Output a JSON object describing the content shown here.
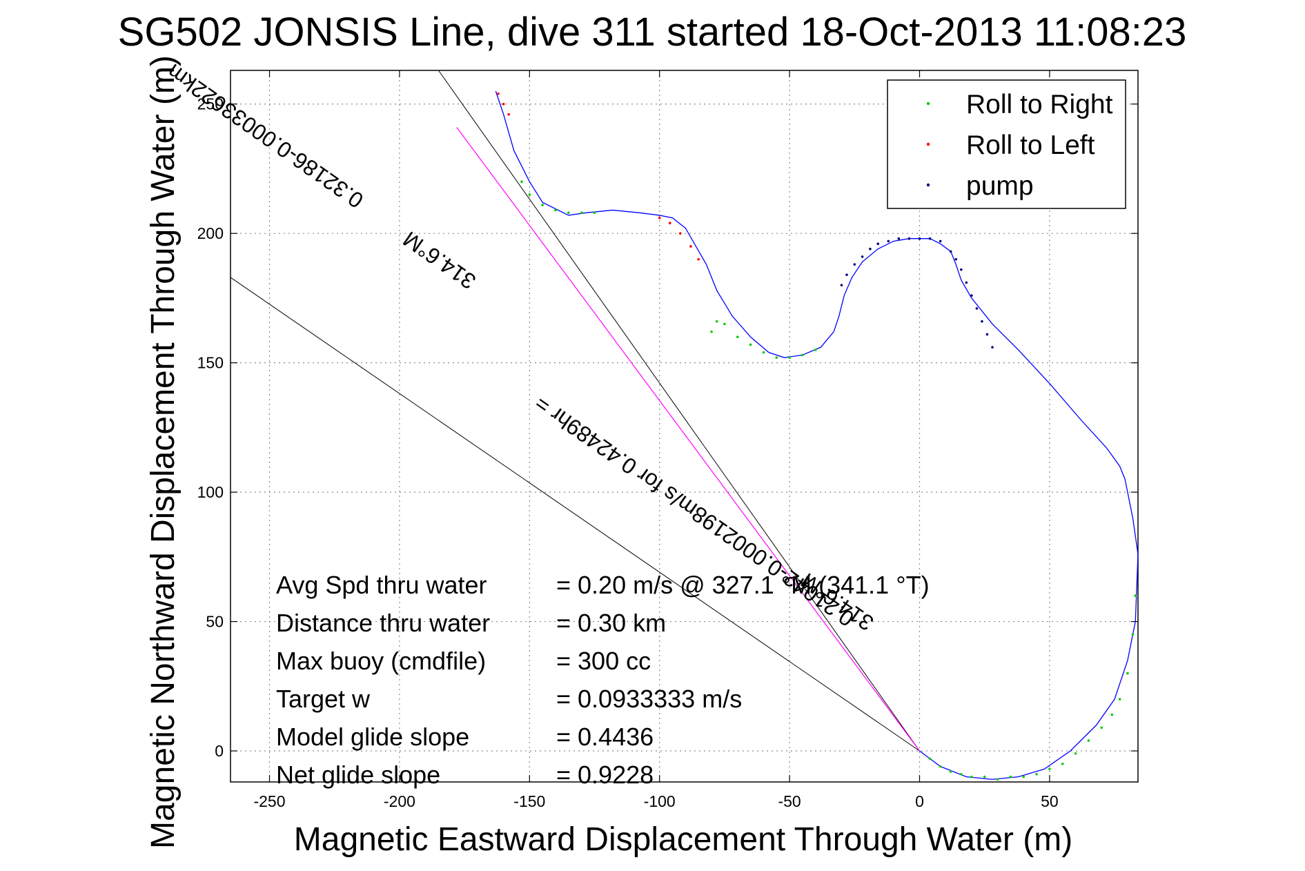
{
  "chart_data": {
    "type": "line",
    "title": "SG502 JONSIS Line, dive 311 started 18-Oct-2013 11:08:23",
    "xlabel": "Magnetic Eastward Displacement Through Water (m)",
    "ylabel": "Magnetic Northward Displacement Through Water (m)",
    "xlim": [
      -265,
      84
    ],
    "ylim": [
      -12,
      263
    ],
    "xticks": [
      -250,
      -200,
      -150,
      -100,
      -50,
      0,
      50
    ],
    "yticks": [
      0,
      50,
      100,
      150,
      200,
      250
    ],
    "grid": true,
    "legend_placement": "top-right",
    "legend": [
      {
        "label": "Roll to Right",
        "color": "#00cc00"
      },
      {
        "label": "Roll to Left",
        "color": "#ff0000"
      },
      {
        "label": "pump",
        "color": "#000080"
      }
    ],
    "track": {
      "name": "track",
      "color": "#0000ff",
      "x": [
        0,
        8,
        18,
        28,
        38,
        48,
        58,
        68,
        75,
        80,
        83,
        84,
        82,
        80,
        79,
        77,
        72,
        62,
        50,
        38,
        28,
        20,
        16,
        14,
        12,
        8,
        4,
        0,
        -4,
        -10,
        -16,
        -22,
        -26,
        -29,
        -31,
        -33,
        -38,
        -45,
        -52,
        -58,
        -65,
        -72,
        -78,
        -82,
        -86,
        -90,
        -95,
        -100,
        -108,
        -118,
        -128,
        -135,
        -145,
        -150,
        -156,
        -160,
        -163
      ],
      "y": [
        0,
        -6,
        -10,
        -11,
        -10,
        -7,
        0,
        10,
        20,
        35,
        50,
        76,
        90,
        100,
        105,
        110,
        117,
        128,
        142,
        155,
        165,
        175,
        182,
        188,
        193,
        196,
        198,
        198,
        198,
        197,
        194,
        189,
        183,
        176,
        168,
        162,
        156,
        153,
        152,
        154,
        160,
        168,
        178,
        188,
        195,
        202,
        206,
        207,
        208,
        209,
        208,
        207,
        212,
        220,
        232,
        246,
        255
      ]
    },
    "roll_right": {
      "x": [
        4,
        8,
        12,
        16,
        20,
        25,
        30,
        35,
        40,
        45,
        50,
        55,
        60,
        65,
        70,
        74,
        77,
        80,
        82,
        83,
        -40,
        -45,
        -50,
        -55,
        -60,
        -65,
        -70,
        -75,
        -78,
        -80,
        -125,
        -130,
        -135,
        -140,
        -145,
        -150,
        -153
      ],
      "y": [
        -3,
        -6,
        -8,
        -9,
        -10,
        -10,
        -11,
        -10,
        -10,
        -9,
        -7,
        -5,
        -1,
        4,
        9,
        14,
        20,
        30,
        45,
        60,
        155,
        153,
        152,
        152,
        154,
        157,
        160,
        165,
        166,
        162,
        208,
        208,
        208,
        209,
        211,
        215,
        220
      ]
    },
    "roll_left": {
      "x": [
        -162,
        -160,
        -158,
        -100,
        -96,
        -92,
        -88,
        -85
      ],
      "y": [
        254,
        250,
        246,
        206,
        204,
        200,
        195,
        190
      ]
    },
    "pump": {
      "x": [
        -30,
        -28,
        -25,
        -22,
        -19,
        -16,
        -12,
        -8,
        -4,
        0,
        4,
        8,
        12,
        14,
        16,
        18,
        20,
        22,
        24,
        26,
        28
      ],
      "y": [
        180,
        184,
        188,
        191,
        194,
        196,
        197,
        198,
        198,
        198,
        198,
        197,
        193,
        190,
        186,
        181,
        176,
        171,
        166,
        161,
        156
      ]
    },
    "heading_lines": [
      {
        "name": "left bound",
        "from": [
          0,
          0
        ],
        "to": [
          -265,
          183
        ]
      },
      {
        "name": "right bound",
        "from": [
          0,
          0
        ],
        "to": [
          -185,
          263
        ]
      },
      {
        "name": "course",
        "from": [
          0,
          0
        ],
        "to": [
          -178,
          241
        ]
      }
    ],
    "annotations": [
      {
        "text": "314.6°M",
        "anchor": [
          -183,
          192
        ],
        "angle": -35
      },
      {
        "text": "0.32186-0.00033622km",
        "anchor": [
          -250,
          240
        ],
        "angle": -35
      },
      {
        "text": "0.21042-0.0002198m/s for 0.42489hr =",
        "anchor": [
          -85,
          95
        ],
        "angle": -35
      },
      {
        "text": "314.6°M",
        "anchor": [
          -30,
          60
        ],
        "angle": -35
      }
    ],
    "stats": [
      {
        "label": "Avg Spd thru water",
        "value": "=  0.20 m/s @ 327.1 °M (341.1 °T)"
      },
      {
        "label": "Distance thru water",
        "value": "=  0.30 km"
      },
      {
        "label": "Max buoy (cmdfile)",
        "value": "= 300 cc"
      },
      {
        "label": "Target w",
        "value": "= 0.0933333 m/s"
      },
      {
        "label": "Model glide slope",
        "value": "= 0.4436"
      },
      {
        "label": "Net glide slope",
        "value": "= 0.9228"
      }
    ]
  }
}
